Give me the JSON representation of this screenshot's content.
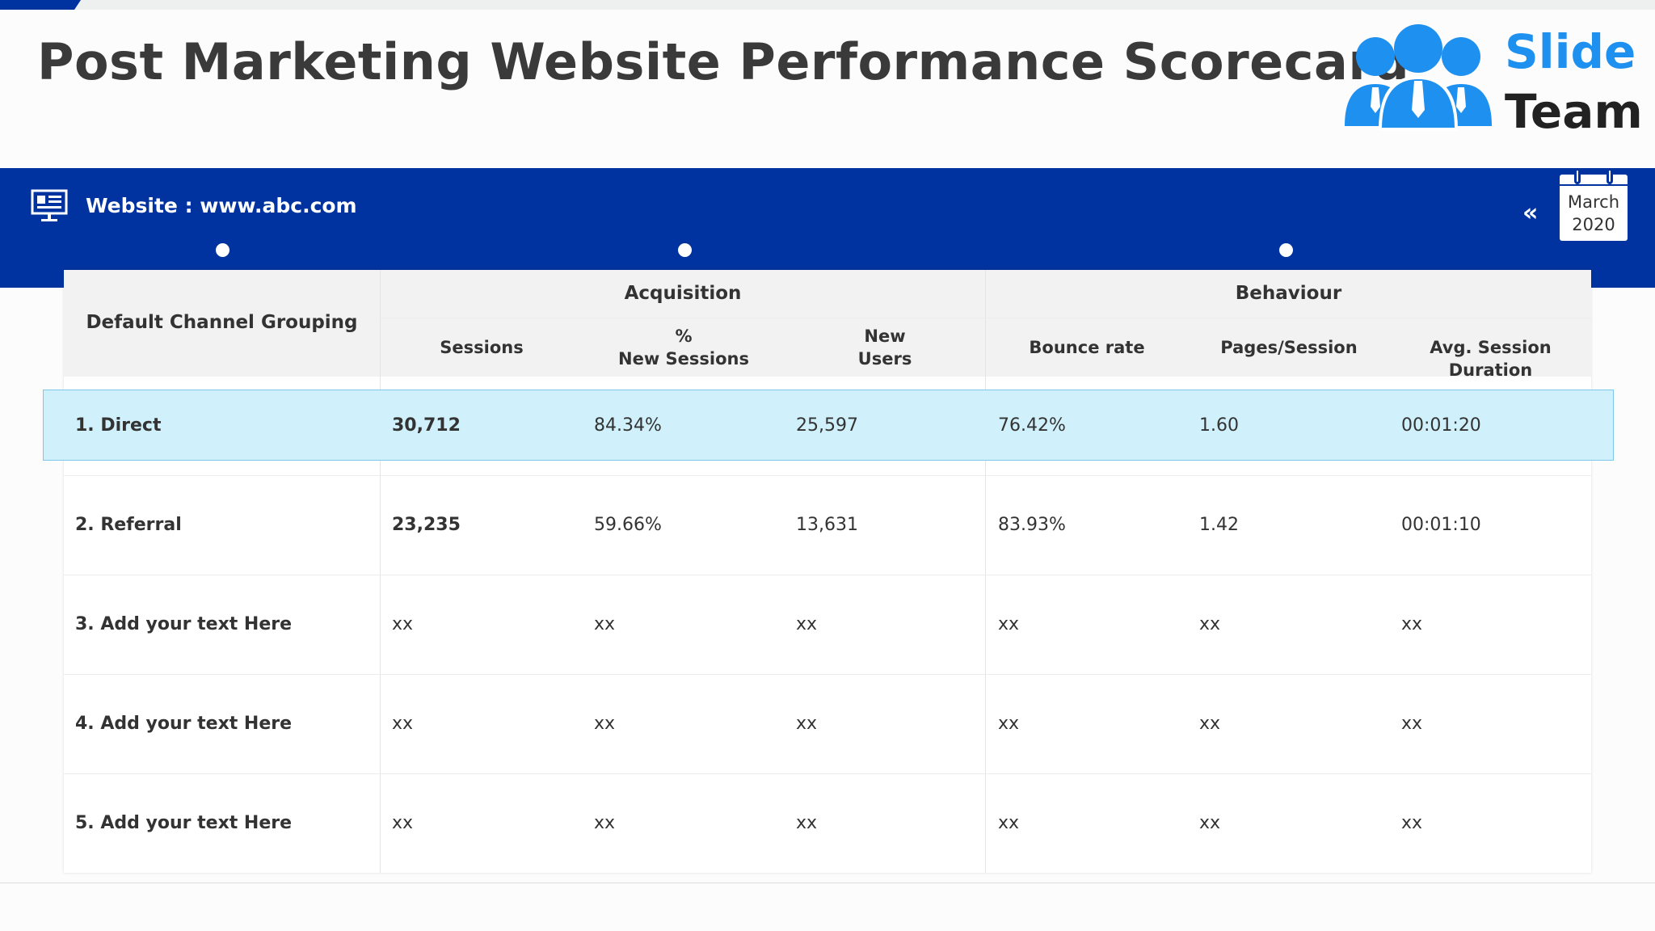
{
  "page": {
    "title": "Post Marketing Website Performance Scorecard",
    "logo": {
      "word1": "Slide",
      "word2": "Team"
    },
    "website_label": "Website : www.abc.com",
    "calendar": {
      "month": "March",
      "year": "2020"
    },
    "nav_chevron": "«"
  },
  "table": {
    "group_headers": {
      "channel": "Default Channel Grouping",
      "acquisition": "Acquisition",
      "behaviour": "Behaviour"
    },
    "columns": {
      "sessions": "Sessions",
      "new_sessions_1": "%",
      "new_sessions_2": "New Sessions",
      "new_users_1": "New",
      "new_users_2": "Users",
      "bounce": "Bounce rate",
      "pages": "Pages/Session",
      "duration": "Avg. Session Duration"
    },
    "rows": [
      {
        "name": "1.   Direct",
        "sessions": "30,712",
        "new_sessions": "84.34%",
        "new_users": "25,597",
        "bounce": "76.42%",
        "pages": "1.60",
        "duration": "00:01:20"
      },
      {
        "name": "2. Referral",
        "sessions": "23,235",
        "new_sessions": "59.66%",
        "new_users": "13,631",
        "bounce": "83.93%",
        "pages": "1.42",
        "duration": "00:01:10"
      },
      {
        "name": "3. Add your text Here",
        "sessions": "xx",
        "new_sessions": "xx",
        "new_users": "xx",
        "bounce": "xx",
        "pages": "xx",
        "duration": "xx"
      },
      {
        "name": "4. Add your text Here",
        "sessions": "xx",
        "new_sessions": "xx",
        "new_users": "xx",
        "bounce": "xx",
        "pages": "xx",
        "duration": "xx"
      },
      {
        "name": "5. Add your text Here",
        "sessions": "xx",
        "new_sessions": "xx",
        "new_users": "xx",
        "bounce": "xx",
        "pages": "xx",
        "duration": "xx"
      }
    ]
  },
  "colors": {
    "brand_blue": "#0033a0",
    "logo_blue": "#1e90ef",
    "highlight_row": "#d0f1fb"
  }
}
